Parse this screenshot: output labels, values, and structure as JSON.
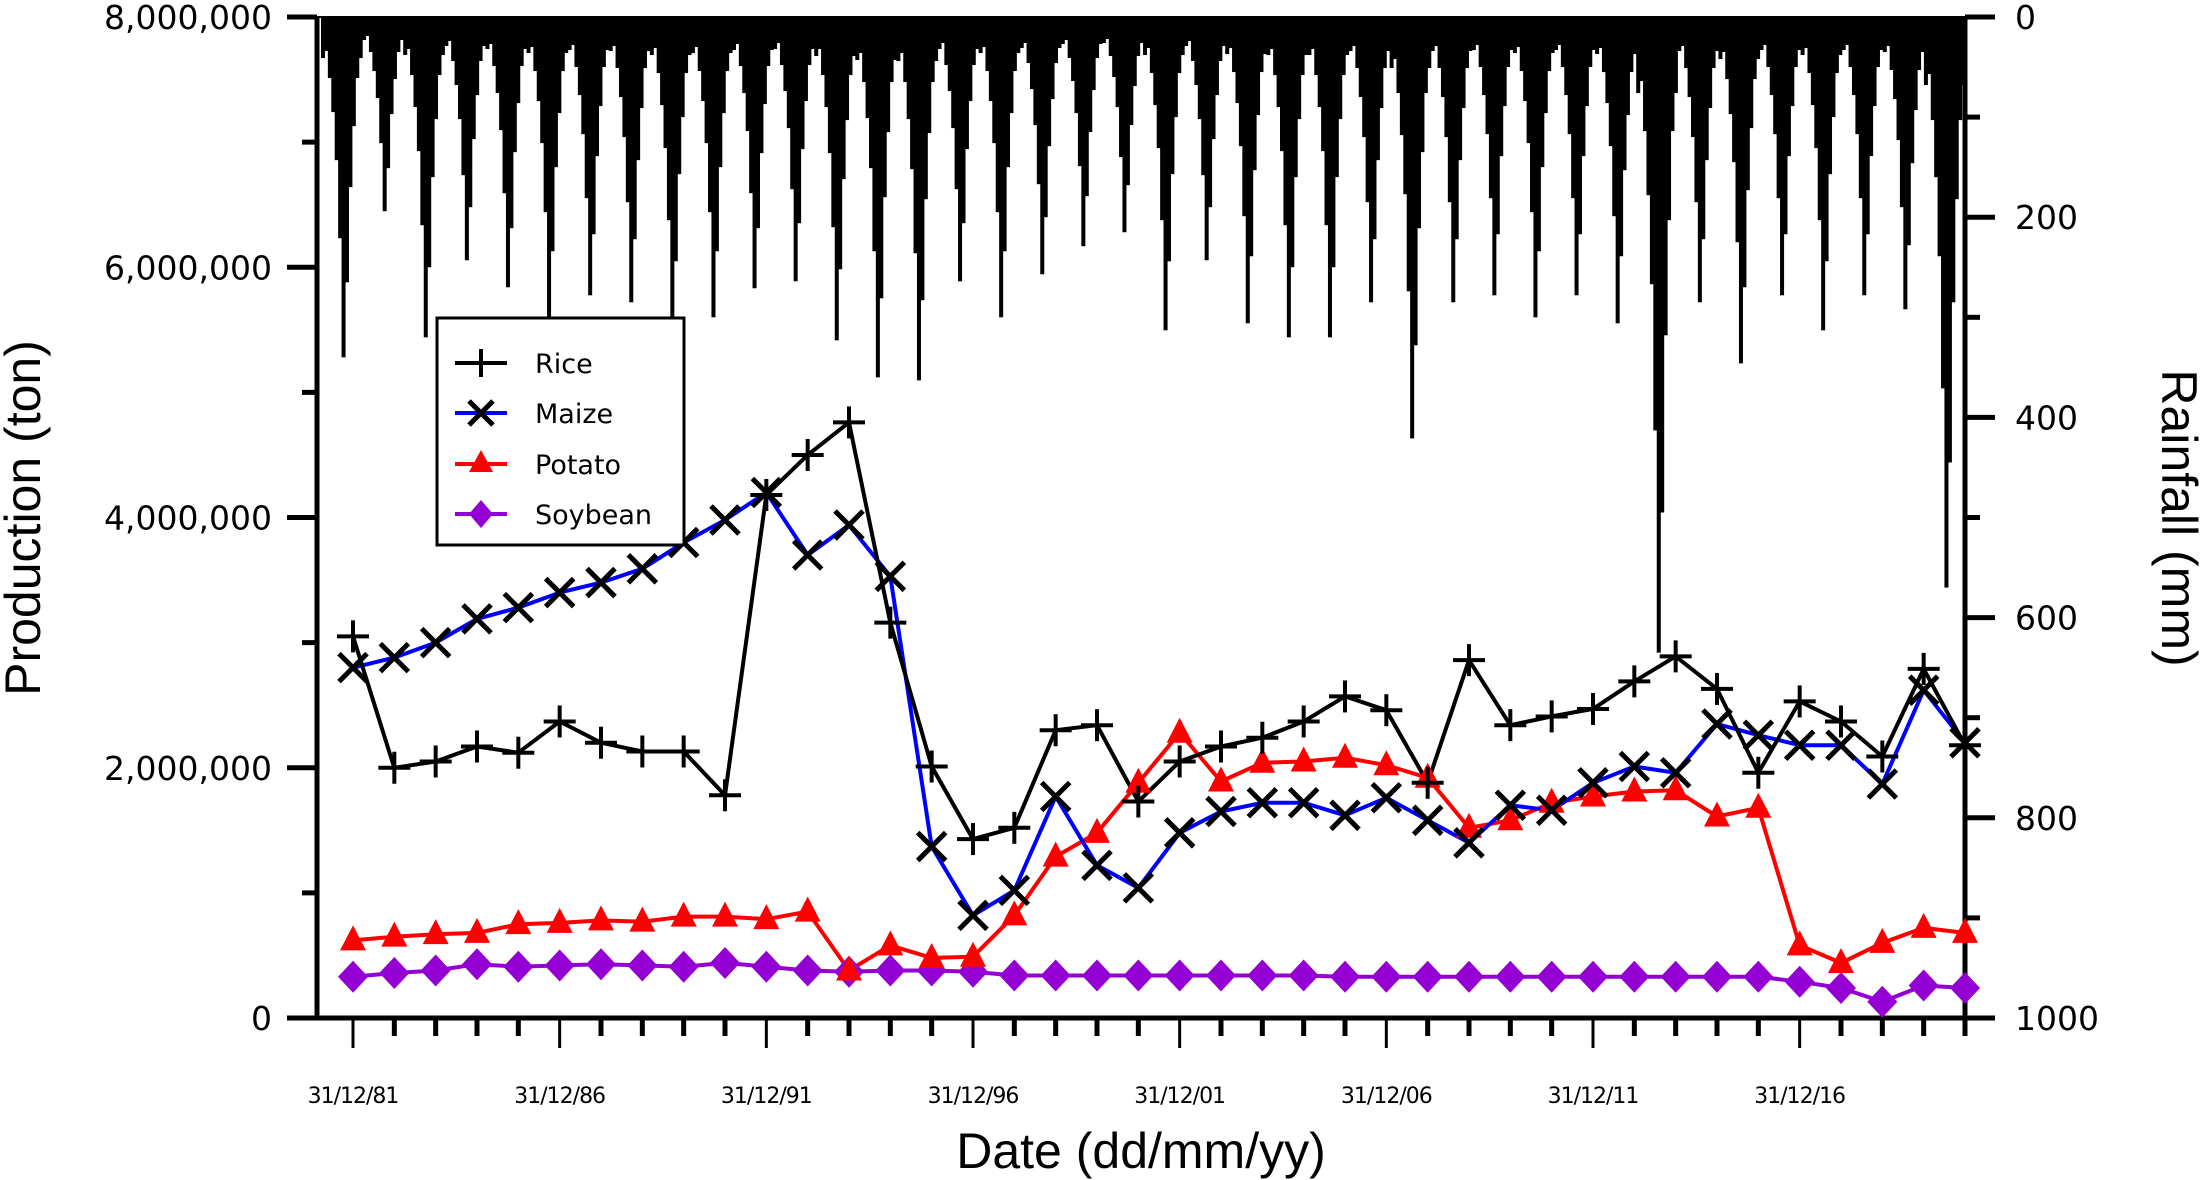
{
  "chart_data": {
    "type": "line",
    "title": "",
    "xlabel": "Date (dd/mm/yy)",
    "ylabel": "Production (ton)",
    "y2label": "Rainfall (mm)",
    "ylim": [
      0,
      8000000
    ],
    "y2lim": [
      0,
      1000
    ],
    "y2_inverted": true,
    "yticks": [
      0,
      2000000,
      4000000,
      6000000,
      8000000
    ],
    "ytick_labels": [
      "0",
      "2,000,000",
      "4,000,000",
      "6,000,000",
      "8,000,000"
    ],
    "y2ticks": [
      0,
      200,
      400,
      600,
      800,
      1000
    ],
    "y2tick_labels": [
      "0",
      "200",
      "400",
      "600",
      "800",
      "1000"
    ],
    "xtick_labels": [
      "31/12/81",
      "31/12/86",
      "31/12/91",
      "31/12/96",
      "31/12/01",
      "31/12/06",
      "31/12/11",
      "31/12/16"
    ],
    "xtick_years": [
      1981,
      1986,
      1991,
      1996,
      2001,
      2006,
      2011,
      2016
    ],
    "legend_position": "upper-left",
    "grid": false,
    "x": [
      1981,
      1982,
      1983,
      1984,
      1985,
      1986,
      1987,
      1988,
      1989,
      1990,
      1991,
      1992,
      1993,
      1994,
      1995,
      1996,
      1997,
      1998,
      1999,
      2000,
      2001,
      2002,
      2003,
      2004,
      2005,
      2006,
      2007,
      2008,
      2009,
      2010,
      2011,
      2012,
      2013,
      2014,
      2015,
      2016,
      2017,
      2018,
      2019,
      2020
    ],
    "series": [
      {
        "name": "Rice",
        "color": "#000000",
        "line_color": "#000000",
        "marker": "plus",
        "values": [
          3050000,
          2000000,
          2050000,
          2170000,
          2120000,
          2370000,
          2200000,
          2130000,
          2130000,
          1780000,
          4180000,
          4500000,
          4760000,
          3160000,
          2010000,
          1430000,
          1520000,
          2300000,
          2340000,
          1730000,
          2050000,
          2170000,
          2240000,
          2370000,
          2570000,
          2460000,
          1880000,
          2860000,
          2340000,
          2410000,
          2470000,
          2690000,
          2890000,
          2630000,
          1960000,
          2530000,
          2370000,
          2090000,
          2790000,
          2180000
        ]
      },
      {
        "name": "Maize",
        "color": "#000000",
        "line_color": "#0000ff",
        "marker": "cross",
        "values": [
          2800000,
          2880000,
          3000000,
          3190000,
          3280000,
          3400000,
          3480000,
          3590000,
          3800000,
          3980000,
          4200000,
          3700000,
          3940000,
          3530000,
          1370000,
          820000,
          1020000,
          1770000,
          1220000,
          1040000,
          1480000,
          1650000,
          1720000,
          1720000,
          1620000,
          1760000,
          1580000,
          1400000,
          1700000,
          1660000,
          1880000,
          2010000,
          1960000,
          2350000,
          2260000,
          2180000,
          2180000,
          1870000,
          2620000,
          2200000
        ]
      },
      {
        "name": "Potato",
        "color": "#ff0000",
        "line_color": "#ff0000",
        "marker": "triangle",
        "values": [
          620000,
          650000,
          670000,
          680000,
          750000,
          760000,
          780000,
          770000,
          810000,
          810000,
          790000,
          850000,
          380000,
          580000,
          480000,
          490000,
          820000,
          1290000,
          1480000,
          1880000,
          2280000,
          1890000,
          2040000,
          2050000,
          2080000,
          2020000,
          1920000,
          1520000,
          1580000,
          1720000,
          1770000,
          1810000,
          1820000,
          1610000,
          1680000,
          580000,
          440000,
          600000,
          720000,
          680000
        ]
      },
      {
        "name": "Soybean",
        "color": "#9400d3",
        "line_color": "#9400d3",
        "marker": "diamond",
        "values": [
          330000,
          360000,
          380000,
          430000,
          410000,
          420000,
          430000,
          420000,
          410000,
          440000,
          410000,
          380000,
          370000,
          380000,
          380000,
          370000,
          340000,
          340000,
          340000,
          340000,
          340000,
          340000,
          340000,
          340000,
          330000,
          330000,
          330000,
          330000,
          330000,
          330000,
          330000,
          330000,
          330000,
          330000,
          330000,
          290000,
          240000,
          130000,
          260000,
          240000
        ]
      }
    ],
    "rainfall_monthly_mm": [
      [
        41,
        34,
        61,
        95,
        143,
        221,
        340,
        265,
        170,
        109,
        61,
        41
      ],
      [
        23,
        19,
        35,
        54,
        81,
        126,
        194,
        151,
        97,
        62,
        35,
        23
      ],
      [
        38,
        32,
        58,
        90,
        134,
        208,
        320,
        250,
        160,
        102,
        58,
        38
      ],
      [
        29,
        24,
        44,
        68,
        102,
        158,
        243,
        190,
        122,
        78,
        44,
        29
      ],
      [
        32,
        27,
        49,
        76,
        113,
        176,
        270,
        211,
        135,
        86,
        49,
        32
      ],
      [
        36,
        30,
        54,
        84,
        126,
        195,
        300,
        234,
        150,
        96,
        54,
        36
      ],
      [
        33,
        28,
        50,
        78,
        117,
        181,
        278,
        217,
        139,
        89,
        50,
        33
      ],
      [
        34,
        29,
        51,
        80,
        120,
        185,
        285,
        222,
        143,
        91,
        51,
        34
      ],
      [
        38,
        31,
        56,
        88,
        131,
        203,
        313,
        244,
        157,
        100,
        56,
        38
      ],
      [
        36,
        30,
        54,
        84,
        126,
        195,
        300,
        234,
        150,
        96,
        54,
        36
      ],
      [
        33,
        27,
        49,
        76,
        114,
        176,
        271,
        211,
        136,
        87,
        49,
        33
      ],
      [
        32,
        26,
        48,
        74,
        111,
        172,
        264,
        206,
        132,
        84,
        48,
        32
      ],
      [
        39,
        32,
        58,
        90,
        136,
        210,
        323,
        252,
        162,
        103,
        58,
        39
      ],
      [
        43,
        36,
        65,
        101,
        151,
        234,
        360,
        281,
        180,
        115,
        65,
        43
      ],
      [
        44,
        36,
        65,
        102,
        152,
        236,
        363,
        283,
        182,
        116,
        65,
        44
      ],
      [
        32,
        26,
        48,
        74,
        111,
        172,
        264,
        206,
        132,
        84,
        48,
        32
      ],
      [
        36,
        30,
        54,
        84,
        126,
        195,
        300,
        234,
        150,
        96,
        54,
        36
      ],
      [
        31,
        26,
        46,
        72,
        108,
        167,
        257,
        200,
        129,
        82,
        46,
        31
      ],
      [
        27,
        23,
        41,
        64,
        96,
        149,
        229,
        179,
        115,
        73,
        41,
        27
      ],
      [
        26,
        22,
        39,
        60,
        90,
        140,
        215,
        168,
        108,
        69,
        39,
        26
      ],
      [
        38,
        31,
        56,
        88,
        131,
        203,
        313,
        244,
        157,
        100,
        56,
        38
      ],
      [
        29,
        24,
        44,
        68,
        102,
        158,
        243,
        190,
        122,
        78,
        44,
        29
      ],
      [
        37,
        31,
        55,
        86,
        129,
        199,
        306,
        239,
        153,
        98,
        55,
        37
      ],
      [
        38,
        32,
        58,
        90,
        134,
        208,
        320,
        250,
        160,
        102,
        58,
        38
      ],
      [
        38,
        32,
        58,
        90,
        134,
        208,
        320,
        250,
        160,
        102,
        58,
        38
      ],
      [
        34,
        29,
        51,
        80,
        120,
        185,
        285,
        222,
        143,
        91,
        51,
        34
      ],
      [
        51,
        42,
        76,
        118,
        177,
        274,
        421,
        328,
        211,
        135,
        76,
        51
      ],
      [
        34,
        29,
        51,
        80,
        120,
        185,
        285,
        222,
        143,
        91,
        51,
        34
      ],
      [
        33,
        28,
        50,
        78,
        117,
        181,
        278,
        217,
        139,
        89,
        50,
        33
      ],
      [
        36,
        30,
        54,
        84,
        126,
        195,
        300,
        234,
        150,
        96,
        54,
        36
      ],
      [
        33,
        28,
        50,
        78,
        117,
        181,
        278,
        217,
        139,
        89,
        50,
        33
      ],
      [
        37,
        31,
        55,
        86,
        129,
        199,
        306,
        239,
        153,
        98,
        55,
        37
      ],
      [
        76,
        64,
        114,
        178,
        267,
        413,
        635,
        495,
        318,
        203,
        114,
        76
      ],
      [
        34,
        29,
        51,
        80,
        120,
        185,
        285,
        222,
        143,
        91,
        51,
        34
      ],
      [
        42,
        35,
        62,
        97,
        145,
        225,
        346,
        270,
        173,
        111,
        62,
        42
      ],
      [
        33,
        28,
        50,
        78,
        117,
        181,
        278,
        217,
        139,
        89,
        50,
        33
      ],
      [
        38,
        31,
        56,
        88,
        131,
        203,
        313,
        244,
        157,
        100,
        56,
        38
      ],
      [
        33,
        28,
        50,
        78,
        117,
        181,
        278,
        217,
        139,
        89,
        50,
        33
      ],
      [
        35,
        29,
        53,
        82,
        123,
        190,
        292,
        228,
        146,
        93,
        53,
        35
      ],
      [
        68,
        57,
        103,
        160,
        239,
        371,
        570,
        445,
        285,
        182,
        103,
        68
      ]
    ]
  }
}
